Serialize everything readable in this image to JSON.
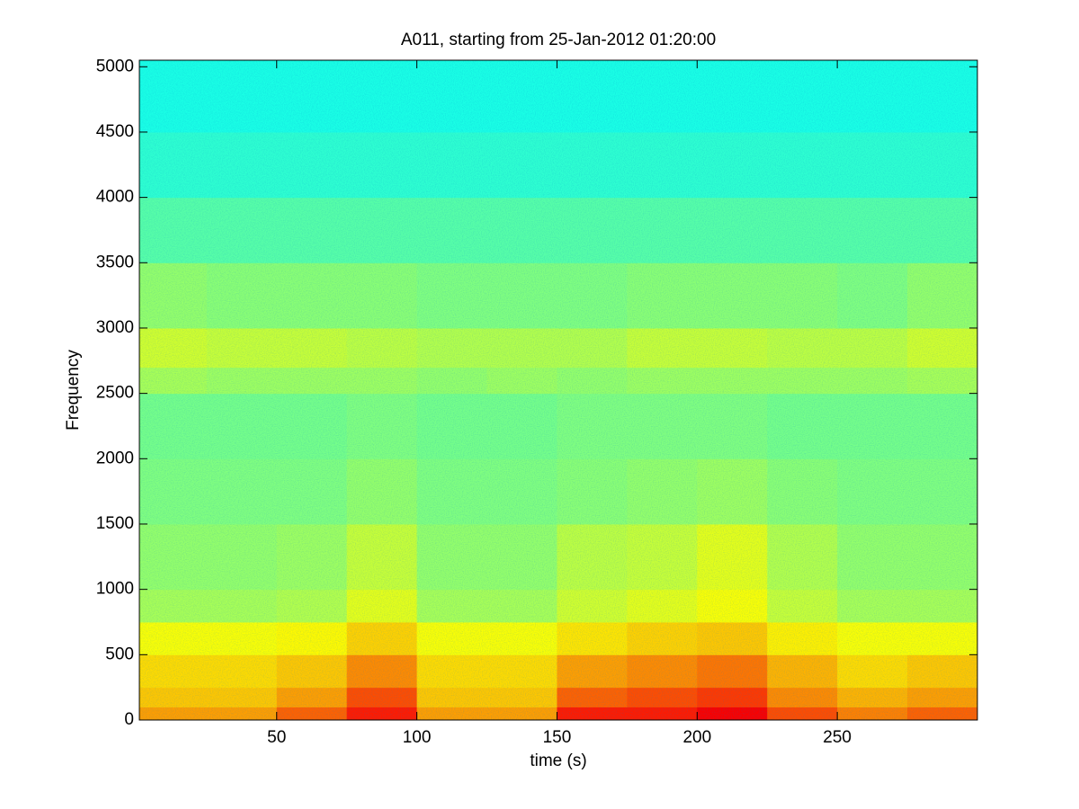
{
  "chart_data": {
    "type": "heatmap",
    "title": "A011, starting from 25-Jan-2012 01:20:00",
    "x_label": "time (s)",
    "y_label": "Frequency",
    "colormap": "jet",
    "clim": [
      0,
      1
    ],
    "xbins": [
      0,
      25,
      50,
      75,
      100,
      125,
      150,
      175,
      200,
      225,
      250,
      275,
      300
    ],
    "ybins": [
      0,
      100,
      250,
      500,
      750,
      1000,
      1500,
      2000,
      2500,
      2700,
      3000,
      3500,
      4000,
      4500,
      5050
    ],
    "z": [
      [
        0.72,
        0.72,
        0.78,
        0.85,
        0.72,
        0.72,
        0.85,
        0.85,
        0.88,
        0.8,
        0.75,
        0.78
      ],
      [
        0.68,
        0.68,
        0.72,
        0.8,
        0.68,
        0.68,
        0.78,
        0.8,
        0.82,
        0.74,
        0.7,
        0.72
      ],
      [
        0.66,
        0.66,
        0.68,
        0.74,
        0.66,
        0.66,
        0.72,
        0.74,
        0.76,
        0.7,
        0.66,
        0.68
      ],
      [
        0.62,
        0.62,
        0.63,
        0.67,
        0.62,
        0.62,
        0.65,
        0.67,
        0.68,
        0.64,
        0.62,
        0.62
      ],
      [
        0.54,
        0.54,
        0.55,
        0.6,
        0.54,
        0.54,
        0.58,
        0.6,
        0.62,
        0.57,
        0.54,
        0.54
      ],
      [
        0.52,
        0.52,
        0.53,
        0.57,
        0.52,
        0.52,
        0.56,
        0.57,
        0.6,
        0.55,
        0.52,
        0.52
      ],
      [
        0.5,
        0.5,
        0.5,
        0.52,
        0.5,
        0.5,
        0.51,
        0.52,
        0.53,
        0.51,
        0.5,
        0.5
      ],
      [
        0.49,
        0.49,
        0.49,
        0.5,
        0.49,
        0.49,
        0.5,
        0.5,
        0.5,
        0.49,
        0.49,
        0.49
      ],
      [
        0.54,
        0.53,
        0.53,
        0.53,
        0.52,
        0.53,
        0.52,
        0.53,
        0.53,
        0.53,
        0.53,
        0.54
      ],
      [
        0.58,
        0.57,
        0.57,
        0.56,
        0.55,
        0.55,
        0.55,
        0.57,
        0.57,
        0.56,
        0.56,
        0.58
      ],
      [
        0.52,
        0.51,
        0.51,
        0.51,
        0.5,
        0.5,
        0.5,
        0.51,
        0.51,
        0.51,
        0.5,
        0.52
      ],
      [
        0.46,
        0.46,
        0.46,
        0.46,
        0.46,
        0.46,
        0.46,
        0.46,
        0.46,
        0.46,
        0.46,
        0.46
      ],
      [
        0.42,
        0.42,
        0.42,
        0.42,
        0.42,
        0.42,
        0.42,
        0.42,
        0.42,
        0.42,
        0.42,
        0.42
      ],
      [
        0.4,
        0.4,
        0.4,
        0.4,
        0.4,
        0.4,
        0.4,
        0.4,
        0.4,
        0.4,
        0.4,
        0.4
      ]
    ],
    "xlim": [
      1,
      300
    ],
    "xticks": [
      50,
      100,
      150,
      200,
      250
    ],
    "ylim": [
      0,
      5050
    ],
    "yticks": [
      0,
      500,
      1000,
      1500,
      2000,
      2500,
      3000,
      3500,
      4000,
      4500,
      5000
    ]
  }
}
